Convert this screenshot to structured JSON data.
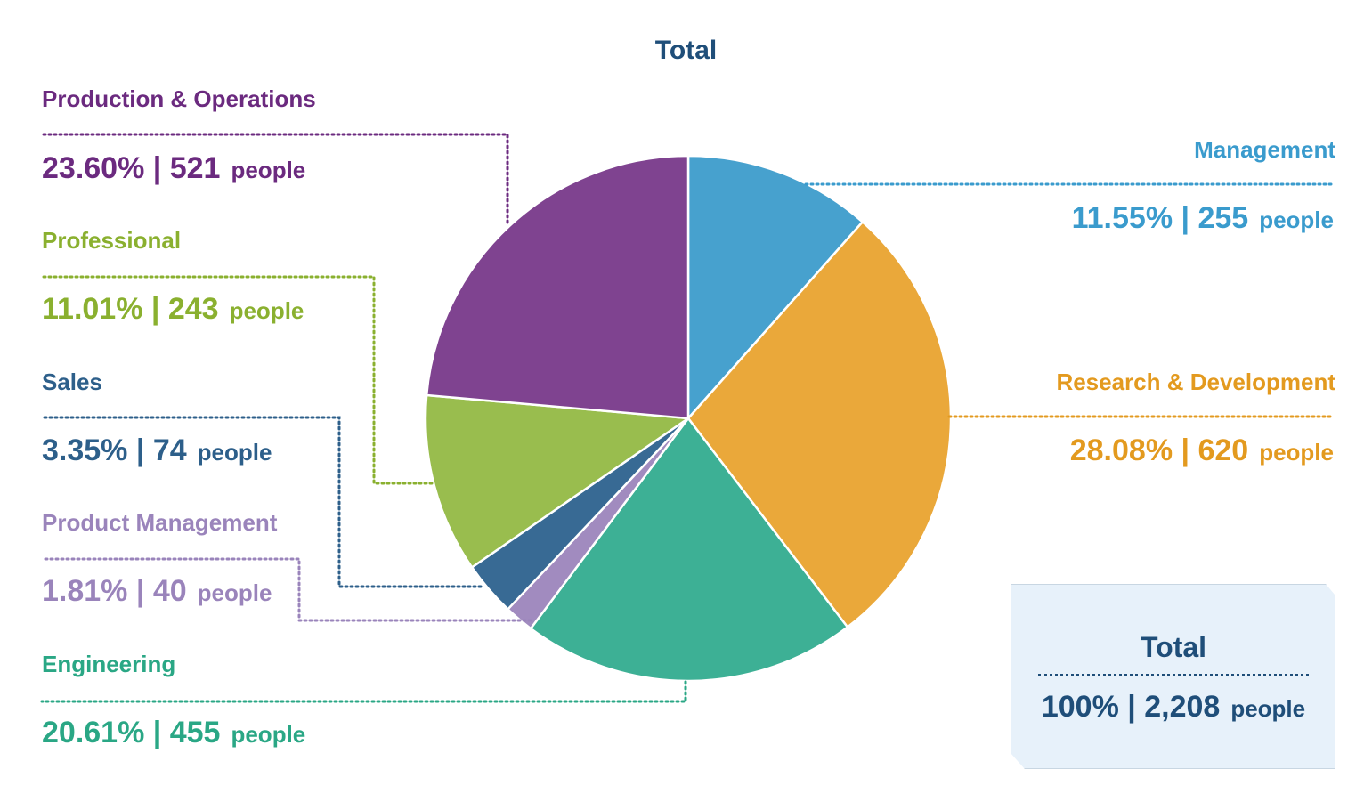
{
  "chart_data": {
    "type": "pie",
    "title": "Total",
    "unit_label": "people",
    "slices": [
      {
        "name": "Management",
        "percent": "11.55%",
        "count": "255",
        "value": 255,
        "color": "#47a1ce"
      },
      {
        "name": "Research & Development",
        "percent": "28.08%",
        "count": "620",
        "value": 620,
        "color": "#eaa83a"
      },
      {
        "name": "Engineering",
        "percent": "20.61%",
        "count": "455",
        "value": 455,
        "color": "#3db095"
      },
      {
        "name": "Product Management",
        "percent": "1.81%",
        "count": "40",
        "value": 40,
        "color": "#a18bbf"
      },
      {
        "name": "Sales",
        "percent": "3.35%",
        "count": "74",
        "value": 74,
        "color": "#386a94"
      },
      {
        "name": "Professional",
        "percent": "11.01%",
        "count": "243",
        "value": 243,
        "color": "#99bd4e"
      },
      {
        "name": "Production & Operations",
        "percent": "23.60%",
        "count": "521",
        "value": 521,
        "color": "#7f4390"
      }
    ],
    "total": {
      "label": "Total",
      "percent": "100%",
      "count": "2,208",
      "unit_label": "people"
    }
  }
}
